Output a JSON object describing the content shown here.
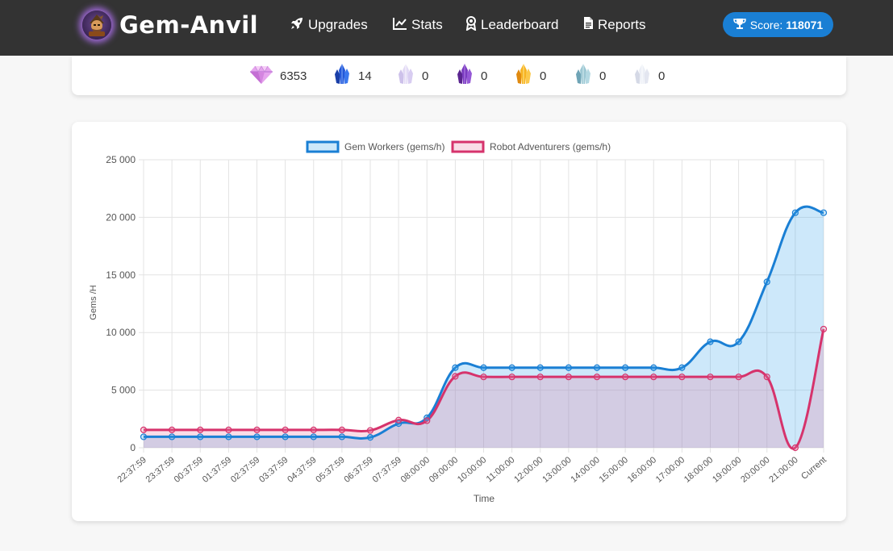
{
  "app": {
    "brand": "Gem-Anvil",
    "logo_icon": "wizard-avatar-icon"
  },
  "nav": {
    "items": [
      {
        "label": "Upgrades",
        "icon": "rocket-icon"
      },
      {
        "label": "Stats",
        "icon": "line-chart-icon"
      },
      {
        "label": "Leaderboard",
        "icon": "award-icon"
      },
      {
        "label": "Reports",
        "icon": "document-icon"
      }
    ],
    "score": {
      "label": "Score:",
      "value": "118071",
      "icon": "trophy-icon"
    }
  },
  "gems": [
    {
      "icon": "pink-diamond-icon",
      "count": "6353",
      "color": "#e77fd9"
    },
    {
      "icon": "blue-crystal-icon",
      "count": "14",
      "color": "#1f4fd1"
    },
    {
      "icon": "lavender-crystal-icon",
      "count": "0",
      "color": "#d9d0f0"
    },
    {
      "icon": "purple-crystal-icon",
      "count": "0",
      "color": "#6a2fa8"
    },
    {
      "icon": "orange-crystal-icon",
      "count": "0",
      "color": "#f2a21b"
    },
    {
      "icon": "teal-crystal-icon",
      "count": "0",
      "color": "#7fb3c4"
    },
    {
      "icon": "white-crystal-icon",
      "count": "0",
      "color": "#dfe3ef"
    }
  ],
  "chart_data": {
    "type": "line",
    "title": "",
    "xlabel": "Time",
    "ylabel": "Gems /H",
    "ylim": [
      0,
      25000
    ],
    "yticks": [
      0,
      5000,
      10000,
      15000,
      20000,
      25000
    ],
    "ytick_labels": [
      "0",
      "5 000",
      "10 000",
      "15 000",
      "20 000",
      "25 000"
    ],
    "grid": true,
    "legend_position": "top",
    "filled": true,
    "categories": [
      "22:37:59",
      "23:37:59",
      "00:37:59",
      "01:37:59",
      "02:37:59",
      "03:37:59",
      "04:37:59",
      "05:37:59",
      "06:37:59",
      "07:37:59",
      "08:00:00",
      "09:00:00",
      "10:00:00",
      "11:00:00",
      "12:00:00",
      "13:00:00",
      "14:00:00",
      "15:00:00",
      "16:00:00",
      "17:00:00",
      "18:00:00",
      "19:00:00",
      "20:00:00",
      "21:00:00",
      "Current"
    ],
    "series": [
      {
        "name": "Gem Workers (gems/h)",
        "color": "#1a7fd4",
        "fill": "rgba(54, 162, 235, 0.25)",
        "values": [
          950,
          950,
          950,
          950,
          950,
          950,
          950,
          950,
          900,
          2100,
          2600,
          6950,
          6950,
          6950,
          6950,
          6950,
          6950,
          6950,
          6950,
          6950,
          9200,
          9200,
          14400,
          20400,
          20400
        ]
      },
      {
        "name": "Robot Adventurers (gems/h)",
        "color": "#d6336c",
        "fill": "rgba(232, 120, 160, 0.25)",
        "values": [
          1550,
          1550,
          1550,
          1550,
          1550,
          1550,
          1550,
          1550,
          1500,
          2400,
          2350,
          6200,
          6150,
          6150,
          6150,
          6150,
          6150,
          6150,
          6150,
          6150,
          6150,
          6150,
          6150,
          0,
          10300
        ]
      }
    ]
  }
}
